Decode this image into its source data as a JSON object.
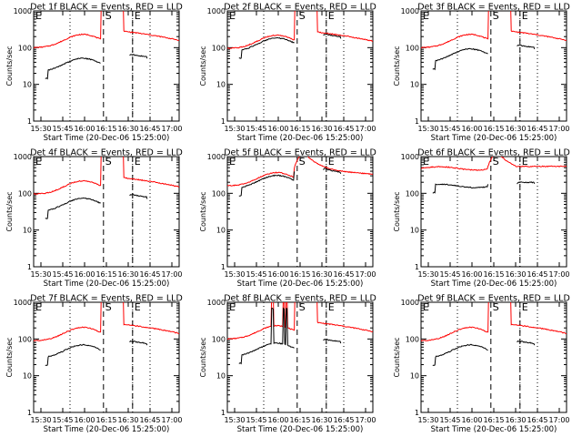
{
  "chart_data": {
    "type": "line",
    "ylabel": "Counts/sec",
    "xlabel": "Start Time (20-Dec-06 15:25:00)",
    "x_tick_labels": [
      "15:30",
      "15:45",
      "16:00",
      "16:15",
      "16:30",
      "16:45",
      "17:00"
    ],
    "x_ticks_min": [
      5,
      20,
      35,
      50,
      65,
      80,
      95
    ],
    "xlim_min": [
      0,
      100
    ],
    "y_scale": "log",
    "ylim": [
      1,
      1000
    ],
    "y_tick_labels": [
      "1",
      "10",
      "100",
      "1000"
    ],
    "y_tick_values": [
      1,
      10,
      100,
      1000
    ],
    "interval_markers": [
      {
        "label": "E",
        "start": 0,
        "end": 25,
        "style": "dotted"
      },
      {
        "label": "S",
        "start": 48,
        "end": 68,
        "style": "dashed"
      },
      {
        "label": "E",
        "start": 68,
        "end": 80,
        "style": "dotted"
      }
    ],
    "colors": {
      "events": "#000000",
      "lld": "#ff0000",
      "axis": "#000000",
      "background": "#ffffff"
    },
    "series_names": [
      "Events",
      "LLD"
    ],
    "panels": [
      {
        "title": "Det 1f BLACK = Events, RED = LLD",
        "det": "1f",
        "rel": 1.0,
        "ratio": 4.5,
        "flat": false,
        "flare": false
      },
      {
        "title": "Det 2f BLACK = Events, RED = LLD",
        "det": "2f",
        "rel": 0.95,
        "ratio": 1.2,
        "flat": false,
        "flare": false
      },
      {
        "title": "Det 3f BLACK = Events, RED = LLD",
        "det": "3f",
        "rel": 1.0,
        "ratio": 2.5,
        "flat": false,
        "flare": false
      },
      {
        "title": "Det 4f BLACK = Events, RED = LLD",
        "det": "4f",
        "rel": 0.95,
        "ratio": 3.0,
        "flat": false,
        "flare": false
      },
      {
        "title": "Det 5f BLACK = Events, RED = LLD",
        "det": "5f",
        "rel": 1.6,
        "ratio": 1.2,
        "flat": false,
        "flare": true
      },
      {
        "title": "Det 6f BLACK = Events, RED = LLD",
        "det": "6f",
        "rel": 1.8,
        "ratio": 3.0,
        "flat": true,
        "flare": true
      },
      {
        "title": "Det 7f BLACK = Events, RED = LLD",
        "det": "7f",
        "rel": 0.9,
        "ratio": 3.0,
        "flat": false,
        "flare": false
      },
      {
        "title": "Det 8f BLACK = Events, RED = LLD",
        "det": "8f",
        "rel": 1.0,
        "ratio": 3.0,
        "flat": false,
        "flare": false,
        "spikes": true
      },
      {
        "title": "Det 9f BLACK = Events, RED = LLD",
        "det": "9f",
        "rel": 0.9,
        "ratio": 3.0,
        "flat": false,
        "flare": false
      }
    ]
  }
}
